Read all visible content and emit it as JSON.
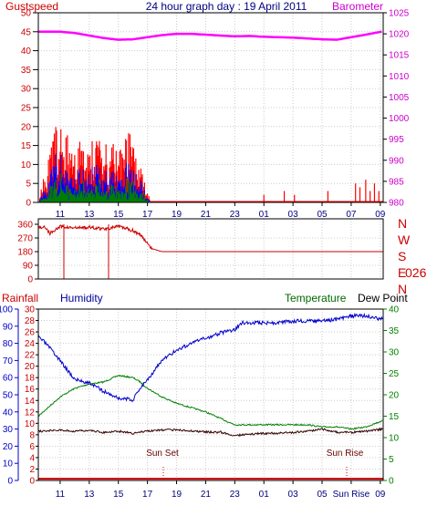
{
  "header": {
    "title": "24 hour graph day : 19 April 2011",
    "left_label": "Gustspeed",
    "right_label": "Barometer"
  },
  "top_panel": {
    "left_ticks": [
      "0",
      "5",
      "10",
      "15",
      "20",
      "25",
      "30",
      "35",
      "40",
      "45",
      "50"
    ],
    "right_ticks": [
      "980",
      "985",
      "990",
      "995",
      "1000",
      "1005",
      "1010",
      "1015",
      "1020",
      "1025"
    ],
    "x_ticks": [
      "11",
      "13",
      "15",
      "17",
      "19",
      "21",
      "23",
      "01",
      "03",
      "05",
      "07",
      "09"
    ]
  },
  "direction_panel": {
    "left_ticks": [
      "0",
      "90",
      "180",
      "270",
      "360"
    ],
    "compass": [
      "N",
      "W",
      "S",
      "E",
      "N"
    ],
    "current_direction": "026°"
  },
  "bottom_panel": {
    "labels": {
      "rainfall": "Rainfall",
      "humidity": "Humidity",
      "temperature": "Temperature",
      "dewpoint": "Dew Point"
    },
    "rain_ticks": [
      "0",
      "2",
      "4",
      "6",
      "8",
      "10",
      "12",
      "14",
      "16",
      "18",
      "20",
      "22",
      "24",
      "26",
      "28",
      "30"
    ],
    "humidity_ticks": [
      "0",
      "10",
      "20",
      "30",
      "40",
      "50",
      "60",
      "70",
      "80",
      "90",
      "100"
    ],
    "temp_ticks": [
      "0",
      "5",
      "10",
      "15",
      "20",
      "25",
      "30",
      "35",
      "40"
    ],
    "x_ticks": [
      "11",
      "13",
      "15",
      "17",
      "19",
      "21",
      "23",
      "01",
      "03",
      "05",
      "Sun Rise",
      "09"
    ],
    "sunset_label": "Sun Set",
    "sunrise_label": "Sun Rise"
  },
  "colors": {
    "gust": "#ff0000",
    "wind": "#0000ff",
    "wind_low": "#008000",
    "barometer": "#ff00ff",
    "direction": "#cc0000",
    "humidity": "#0000cc",
    "temperature": "#008000",
    "dewpoint": "#330000",
    "rain": "#cc0000",
    "left_text": "#cc0000",
    "title_text": "#000080",
    "right_text": "#cc00cc",
    "humidity_text": "#000099",
    "temp_text": "#006600",
    "axis_green": "#008000"
  },
  "chart_data": [
    {
      "type": "area",
      "title": "24 hour graph day : 19 April 2011",
      "x_range_hours": [
        9.5,
        33.2
      ],
      "series": [
        {
          "name": "Gustspeed",
          "axis": "left",
          "ylim": [
            0,
            50
          ],
          "x": [
            9.6,
            10.0,
            10.4,
            10.8,
            11.2,
            11.6,
            12.0,
            12.4,
            12.8,
            13.2,
            13.6,
            14.0,
            14.4,
            14.8,
            15.2,
            15.6,
            16.0,
            16.4,
            16.8,
            17.0,
            17.2
          ],
          "values": [
            3,
            6,
            10,
            16,
            12,
            14,
            10,
            12,
            9,
            13,
            11,
            12,
            9,
            12,
            10,
            14,
            11,
            9,
            5,
            3,
            0
          ]
        },
        {
          "name": "Barometer",
          "axis": "right",
          "ylim": [
            980,
            1025
          ],
          "x": [
            9.5,
            11,
            12,
            13,
            14,
            15,
            16,
            17,
            18,
            19,
            20,
            21,
            22,
            23,
            24,
            25,
            26,
            27,
            28,
            29,
            30,
            31,
            32,
            33.2
          ],
          "values": [
            1020.5,
            1020.5,
            1020.2,
            1019.6,
            1019.0,
            1018.6,
            1018.7,
            1019.2,
            1019.7,
            1020.0,
            1020.0,
            1019.8,
            1019.6,
            1019.4,
            1019.5,
            1019.3,
            1019.2,
            1019.1,
            1018.9,
            1018.7,
            1018.6,
            1019.2,
            1019.8,
            1020.6
          ]
        }
      ]
    },
    {
      "type": "line",
      "title": "",
      "ylim": [
        0,
        360
      ],
      "series": [
        {
          "name": "Wind direction",
          "x": [
            9.5,
            10.0,
            10.3,
            11.0,
            12.0,
            13.0,
            14.0,
            15.0,
            16.0,
            16.5,
            17.0,
            17.3,
            18.0,
            25.0,
            33.2
          ],
          "values": [
            340,
            340,
            300,
            345,
            335,
            340,
            330,
            345,
            320,
            290,
            240,
            200,
            180,
            180,
            180
          ]
        }
      ]
    },
    {
      "type": "line",
      "title": "",
      "series": [
        {
          "name": "Humidity",
          "axis": "humidity",
          "ylim": [
            0,
            100
          ],
          "x": [
            9.5,
            10,
            11,
            12,
            13,
            14,
            15,
            16,
            16.5,
            17,
            18,
            19,
            20,
            21,
            22,
            23,
            23.5,
            24,
            25,
            26,
            27,
            28,
            29,
            30,
            31,
            32,
            33.2
          ],
          "values": [
            84,
            80,
            70,
            59,
            57,
            52,
            48,
            47,
            54,
            59,
            70,
            76,
            80,
            83,
            86,
            88,
            92,
            92,
            92,
            92,
            93,
            93,
            93,
            94,
            96,
            96,
            94
          ]
        },
        {
          "name": "Temperature",
          "axis": "temperature",
          "ylim": [
            0,
            40
          ],
          "x": [
            9.5,
            10,
            11,
            12,
            13,
            14,
            15,
            16,
            16.5,
            17,
            18,
            19,
            20,
            21,
            22,
            23,
            24,
            25,
            26,
            27,
            28,
            29,
            30,
            31,
            32,
            33.2
          ],
          "values": [
            15,
            16.5,
            19.5,
            21.5,
            22.5,
            23,
            24.5,
            24,
            23,
            21.5,
            19.5,
            18,
            17,
            16,
            14.5,
            13,
            13,
            13,
            13,
            13,
            13,
            12.5,
            12.5,
            12,
            12.5,
            14
          ]
        },
        {
          "name": "Dew Point",
          "axis": "temperature",
          "ylim": [
            0,
            40
          ],
          "x": [
            9.5,
            10,
            11,
            12,
            13,
            14,
            15,
            16,
            17,
            18,
            19,
            20,
            21,
            22,
            23,
            24,
            25,
            26,
            27,
            28,
            29,
            30,
            31,
            32,
            33.2
          ],
          "values": [
            11.5,
            11.5,
            11.8,
            11.5,
            11.7,
            11.2,
            11.5,
            11,
            11.5,
            11.8,
            11.8,
            11.6,
            11.3,
            11.3,
            10.5,
            10.8,
            11,
            11,
            11.2,
            11.5,
            12,
            11.3,
            11.2,
            11.5,
            12
          ]
        },
        {
          "name": "Rainfall",
          "axis": "rain",
          "ylim": [
            0,
            30
          ],
          "x": [
            9.5,
            33.2
          ],
          "values": [
            0.3,
            0.3
          ]
        }
      ],
      "events": [
        {
          "label": "Sun Set",
          "hour": 18.1
        },
        {
          "label": "Sun Rise",
          "hour": 31.4
        }
      ]
    }
  ]
}
